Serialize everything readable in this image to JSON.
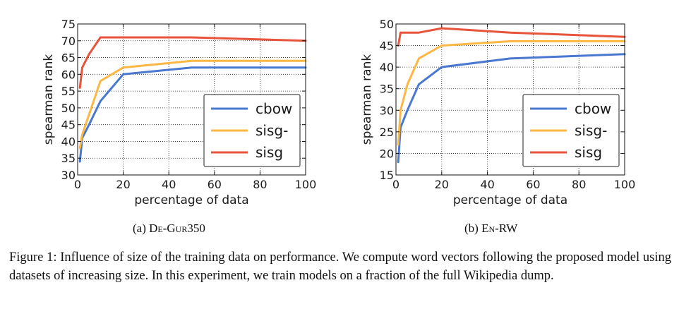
{
  "chart_data": [
    {
      "type": "line",
      "xlabel": "percentage of data",
      "ylabel": "spearman rank",
      "xlim": [
        0,
        100
      ],
      "ylim": [
        30,
        75
      ],
      "xticks": [
        0,
        20,
        40,
        60,
        80,
        100
      ],
      "yticks": [
        30,
        35,
        40,
        45,
        50,
        55,
        60,
        65,
        70,
        75
      ],
      "grid": true,
      "legend_position": "lower-right",
      "x": [
        1,
        2,
        5,
        10,
        20,
        50,
        100
      ],
      "series": [
        {
          "name": "cbow",
          "color": "#4878cf",
          "values": [
            34,
            41,
            45,
            52,
            60,
            62,
            62
          ]
        },
        {
          "name": "sisg-",
          "color": "#fcb744",
          "values": [
            38,
            42,
            48,
            58,
            62,
            64,
            64
          ]
        },
        {
          "name": "sisg",
          "color": "#e8533c",
          "values": [
            56,
            62,
            66,
            71,
            71,
            71,
            70
          ]
        }
      ]
    },
    {
      "type": "line",
      "xlabel": "percentage of data",
      "ylabel": "spearman rank",
      "xlim": [
        0,
        100
      ],
      "ylim": [
        15,
        50
      ],
      "xticks": [
        0,
        20,
        40,
        60,
        80,
        100
      ],
      "yticks": [
        15,
        20,
        25,
        30,
        35,
        40,
        45,
        50
      ],
      "grid": true,
      "legend_position": "lower-right",
      "x": [
        1,
        2,
        5,
        10,
        20,
        50,
        100
      ],
      "series": [
        {
          "name": "cbow",
          "color": "#4878cf",
          "values": [
            18,
            26,
            30,
            36,
            40,
            42,
            43
          ]
        },
        {
          "name": "sisg-",
          "color": "#fcb744",
          "values": [
            22,
            30,
            36,
            42,
            45,
            46,
            46
          ]
        },
        {
          "name": "sisg",
          "color": "#e8533c",
          "values": [
            45,
            48,
            48,
            48,
            49,
            48,
            47
          ]
        }
      ]
    }
  ],
  "subcaptions": {
    "a": {
      "prefix": "(a) ",
      "name": "De-Gur350"
    },
    "b": {
      "prefix": "(b) ",
      "name": "En-RW"
    }
  },
  "caption": "Figure 1: Influence of size of the training data on performance. We compute word vectors following the proposed model using datasets of increasing size. In this experiment, we train models on a fraction of the full Wikipedia dump."
}
